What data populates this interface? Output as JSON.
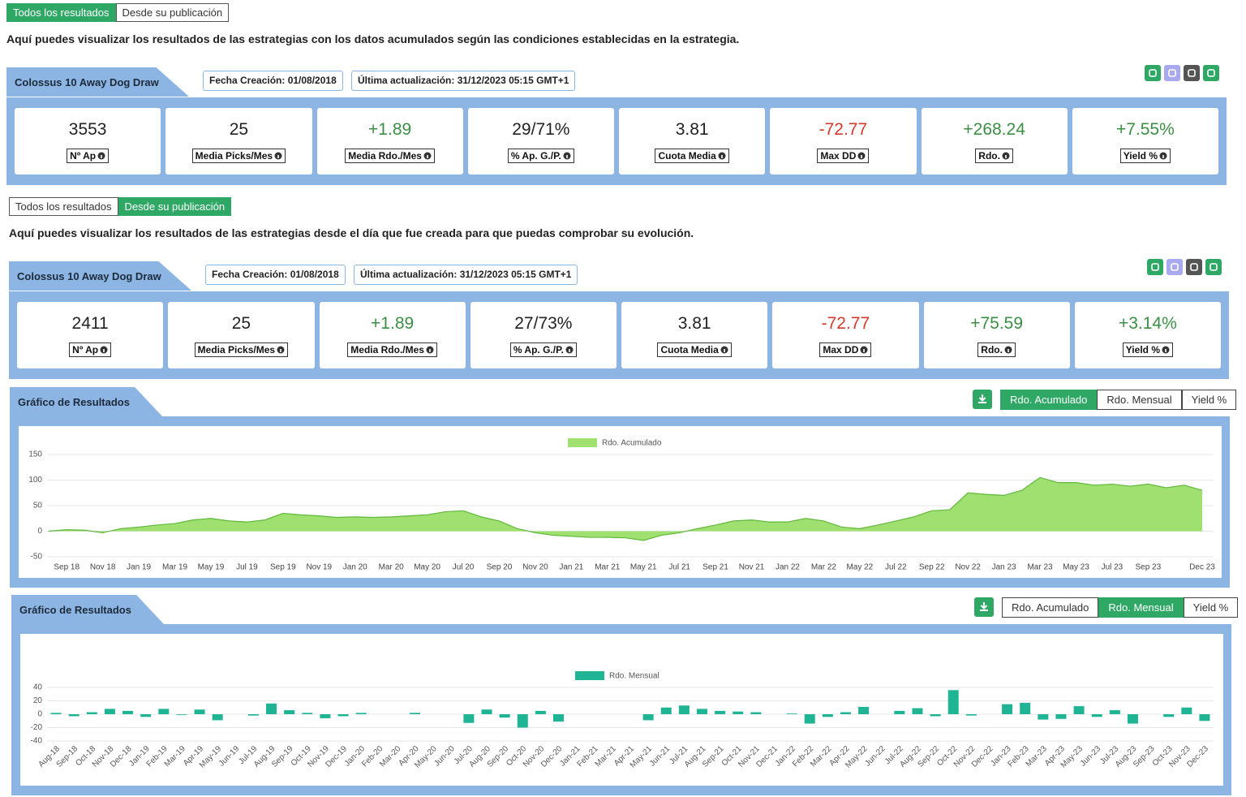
{
  "sections": [
    {
      "tabs": [
        "Todos los resultados",
        "Desde su publicación"
      ],
      "active_tab": 0,
      "description": "Aquí puedes visualizar los resultados de las estrategias con los datos acumulados según las condiciones establecidas en la estrategia.",
      "strategy": {
        "name": "Colossus 10 Away Dog Draw",
        "created": "Fecha Creación: 01/08/2018",
        "updated": "Última actualización: 31/12/2023 05:15 GMT+1"
      },
      "stats": [
        {
          "value": "3553",
          "label": "Nº Ap",
          "color": "#222222"
        },
        {
          "value": "25",
          "label": "Media Picks/Mes",
          "color": "#222222"
        },
        {
          "value": "+1.89",
          "label": "Media Rdo./Mes",
          "color": "#3a8f45"
        },
        {
          "value": "29/71%",
          "label": "% Ap. G./P.",
          "color": "#222222"
        },
        {
          "value": "3.81",
          "label": "Cuota Media",
          "color": "#222222"
        },
        {
          "value": "-72.77",
          "label": "Max DD",
          "color": "#d33a2c"
        },
        {
          "value": "+268.24",
          "label": "Rdo.",
          "color": "#3a8f45"
        },
        {
          "value": "+7.55%",
          "label": "Yield %",
          "color": "#3a8f45"
        }
      ]
    },
    {
      "tabs": [
        "Todos los resultados",
        "Desde su publicación"
      ],
      "active_tab": 1,
      "description": "Aquí puedes visualizar los resultados de las estrategias desde el día que fue creada para que puedas comprobar su evolución.",
      "strategy": {
        "name": "Colossus 10 Away Dog Draw",
        "created": "Fecha Creación: 01/08/2018",
        "updated": "Última actualización: 31/12/2023 05:15 GMT+1"
      },
      "stats": [
        {
          "value": "2411",
          "label": "Nº Ap",
          "color": "#222222"
        },
        {
          "value": "25",
          "label": "Media Picks/Mes",
          "color": "#222222"
        },
        {
          "value": "+1.89",
          "label": "Media Rdo./Mes",
          "color": "#3a8f45"
        },
        {
          "value": "27/73%",
          "label": "% Ap. G./P.",
          "color": "#222222"
        },
        {
          "value": "3.81",
          "label": "Cuota Media",
          "color": "#222222"
        },
        {
          "value": "-72.77",
          "label": "Max DD",
          "color": "#d33a2c"
        },
        {
          "value": "+75.59",
          "label": "Rdo.",
          "color": "#3a8f45"
        },
        {
          "value": "+3.14%",
          "label": "Yield %",
          "color": "#3a8f45"
        }
      ]
    }
  ],
  "chart_data": [
    {
      "type": "area",
      "title": "Gráfico de Resultados",
      "buttons": [
        "Rdo. Acumulado",
        "Rdo. Mensual",
        "Yield %"
      ],
      "active_button": 0,
      "categories": [
        null,
        "Sep 18",
        null,
        "Nov 18",
        null,
        "Jan 19",
        null,
        "Mar 19",
        null,
        "May 19",
        null,
        "Jul 19",
        null,
        "Sep 19",
        null,
        "Nov 19",
        null,
        "Jan 20",
        null,
        "Mar 20",
        null,
        "May 20",
        null,
        "Jul 20",
        null,
        "Sep 20",
        null,
        "Nov 20",
        null,
        "Jan 21",
        null,
        "Mar 21",
        null,
        "May 21",
        null,
        "Jul 21",
        null,
        "Sep 21",
        null,
        "Nov 21",
        null,
        "Jan 22",
        null,
        "Mar 22",
        null,
        "May 22",
        null,
        "Jul 22",
        null,
        "Sep 22",
        null,
        "Nov 22",
        null,
        "Jan 23",
        null,
        "Mar 23",
        null,
        "May 23",
        null,
        "Jul 23",
        null,
        "Sep 23",
        null,
        null,
        "Dec 23"
      ],
      "series": [
        {
          "name": "Rdo. Acumulado",
          "color": "#9fe070",
          "values": [
            0,
            3,
            2,
            -3,
            5,
            8,
            12,
            15,
            22,
            25,
            20,
            18,
            22,
            35,
            32,
            30,
            27,
            28,
            27,
            28,
            30,
            32,
            38,
            40,
            28,
            20,
            5,
            -3,
            -8,
            -10,
            -12,
            -12,
            -13,
            -18,
            -8,
            -3,
            5,
            12,
            20,
            22,
            18,
            18,
            25,
            20,
            8,
            5,
            12,
            20,
            28,
            40,
            42,
            75,
            72,
            70,
            80,
            105,
            95,
            95,
            90,
            92,
            88,
            92,
            85,
            90,
            80
          ]
        }
      ],
      "ylim": [
        -50,
        150
      ],
      "yticks": [
        -50,
        0,
        50,
        100,
        150
      ],
      "grid": true
    },
    {
      "type": "bar",
      "title": "Gráfico de Resultados",
      "buttons": [
        "Rdo. Acumulado",
        "Rdo. Mensual",
        "Yield %"
      ],
      "active_button": 1,
      "categories": [
        "Aug-18",
        "Sep-18",
        "Oct-18",
        "Nov-18",
        "Dec-18",
        "Jan-19",
        "Feb-19",
        "Mar-19",
        "Apr-19",
        "May-19",
        "Jun-19",
        "Jul-19",
        "Aug-19",
        "Sep-19",
        "Oct-19",
        "Nov-19",
        "Dec-19",
        "Jan-20",
        "Feb-20",
        "Mar-20",
        "Apr-20",
        "May-20",
        "Jun-20",
        "Jul-20",
        "Aug-20",
        "Sep-20",
        "Oct-20",
        "Nov-20",
        "Dec-20",
        "Jan-21",
        "Feb-21",
        "Mar-21",
        "Apr-21",
        "May-21",
        "Jun-21",
        "Jul-21",
        "Aug-21",
        "Sep-21",
        "Oct-21",
        "Nov-21",
        "Dec-21",
        "Jan-22",
        "Feb-22",
        "Mar-22",
        "Apr-22",
        "May-22",
        "Jun-22",
        "Jul-22",
        "Aug-22",
        "Sep-22",
        "Oct-22",
        "Nov-22",
        "Dec-22",
        "Jan-23",
        "Feb-23",
        "Mar-23",
        "Apr-23",
        "May-23",
        "Jun-23",
        "Jul-23",
        "Aug-23",
        "Sep-23",
        "Oct-23",
        "Nov-23",
        "Dec-23"
      ],
      "series": [
        {
          "name": "Rdo. Mensual",
          "color": "#1fb594",
          "values": [
            2,
            -3,
            3,
            8,
            5,
            -4,
            8,
            -1,
            7,
            -9,
            0,
            -2,
            16,
            6,
            2,
            -6,
            -3,
            2,
            0,
            0,
            2,
            0,
            0,
            -13,
            7,
            -5,
            -20,
            5,
            -11,
            0,
            0,
            0,
            0,
            -9,
            10,
            13,
            8,
            5,
            4,
            3,
            0,
            1,
            -14,
            -4,
            3,
            11,
            0,
            5,
            9,
            -3,
            36,
            -2,
            0,
            15,
            17,
            -8,
            -7,
            12,
            -4,
            6,
            -14,
            0,
            -4,
            10,
            -10
          ]
        }
      ],
      "ylim": [
        -40,
        40
      ],
      "yticks": [
        -40,
        -20,
        0,
        20,
        40
      ],
      "grid": true
    }
  ]
}
